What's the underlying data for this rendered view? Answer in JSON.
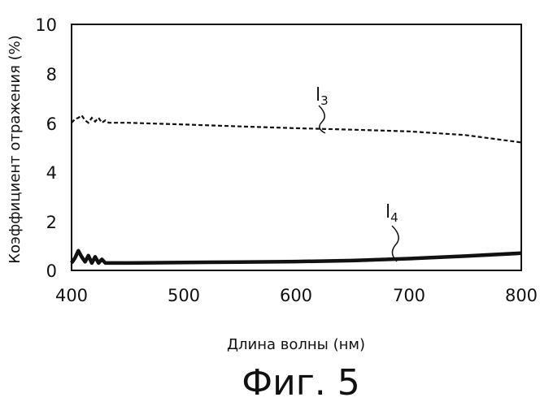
{
  "figure_caption": "Фиг. 5",
  "chart_data": {
    "type": "line",
    "xlabel": "Длина волны (нм)",
    "ylabel": "Коэффициент отражения (%)",
    "xlim": [
      400,
      800
    ],
    "ylim": [
      0,
      10
    ],
    "x_ticks": [
      "400",
      "500",
      "600",
      "700",
      "800"
    ],
    "y_ticks": [
      "0",
      "2",
      "4",
      "6",
      "8",
      "10"
    ],
    "grid": false,
    "series": [
      {
        "name": "l3",
        "label_main": "l",
        "label_sub": "3",
        "style": "dashed",
        "color": "#111111",
        "x": [
          400,
          403,
          406,
          409,
          412,
          415,
          418,
          421,
          424,
          427,
          430,
          433,
          436,
          450,
          500,
          550,
          600,
          650,
          700,
          750,
          800
        ],
        "y": [
          6.0,
          6.15,
          6.2,
          6.3,
          6.1,
          6.0,
          6.2,
          6.05,
          6.2,
          6.0,
          6.1,
          6.0,
          6.0,
          6.0,
          5.93,
          5.85,
          5.78,
          5.72,
          5.65,
          5.5,
          5.2
        ]
      },
      {
        "name": "l4",
        "label_main": "l",
        "label_sub": "4",
        "style": "solid-thick",
        "color": "#111111",
        "x": [
          400,
          403,
          406,
          409,
          412,
          415,
          418,
          421,
          424,
          427,
          430,
          433,
          436,
          450,
          500,
          550,
          600,
          650,
          700,
          750,
          800
        ],
        "y": [
          0.3,
          0.5,
          0.8,
          0.55,
          0.35,
          0.6,
          0.3,
          0.55,
          0.3,
          0.45,
          0.3,
          0.3,
          0.3,
          0.3,
          0.32,
          0.34,
          0.36,
          0.4,
          0.48,
          0.58,
          0.7
        ]
      }
    ]
  }
}
